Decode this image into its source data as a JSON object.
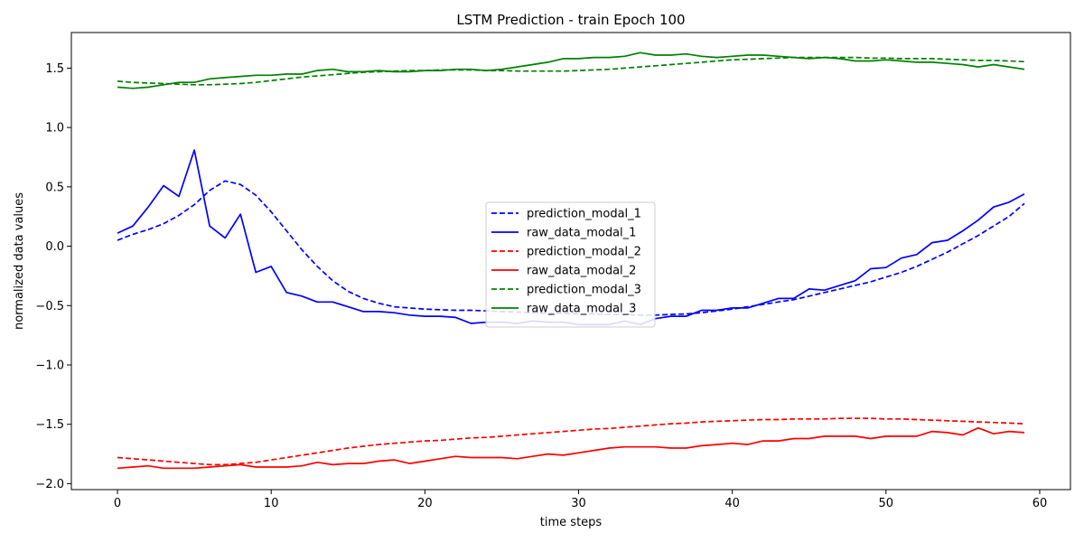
{
  "chart_data": {
    "type": "line",
    "title": "LSTM Prediction - train Epoch 100",
    "xlabel": "time steps",
    "ylabel": "normalized data values",
    "xlim": [
      -3,
      62
    ],
    "ylim": [
      -2.05,
      1.8
    ],
    "xticks": [
      0,
      10,
      20,
      30,
      40,
      50,
      60
    ],
    "yticks": [
      -2.0,
      -1.5,
      -1.0,
      -0.5,
      0.0,
      0.5,
      1.0,
      1.5
    ],
    "ytick_labels": [
      "−2.0",
      "−1.5",
      "−1.0",
      "−0.5",
      "0.0",
      "0.5",
      "1.0",
      "1.5"
    ],
    "grid": false,
    "legend_position": "center",
    "x": [
      0,
      1,
      2,
      3,
      4,
      5,
      6,
      7,
      8,
      9,
      10,
      11,
      12,
      13,
      14,
      15,
      16,
      17,
      18,
      19,
      20,
      21,
      22,
      23,
      24,
      25,
      26,
      27,
      28,
      29,
      30,
      31,
      32,
      33,
      34,
      35,
      36,
      37,
      38,
      39,
      40,
      41,
      42,
      43,
      44,
      45,
      46,
      47,
      48,
      49,
      50,
      51,
      52,
      53,
      54,
      55,
      56,
      57,
      58,
      59
    ],
    "series": [
      {
        "name": "prediction_modal_1",
        "color": "#0000ff",
        "style": "dashed",
        "values": [
          0.05,
          0.1,
          0.14,
          0.19,
          0.26,
          0.35,
          0.47,
          0.55,
          0.52,
          0.43,
          0.29,
          0.13,
          -0.03,
          -0.17,
          -0.29,
          -0.38,
          -0.44,
          -0.48,
          -0.51,
          -0.52,
          -0.53,
          -0.535,
          -0.54,
          -0.54,
          -0.545,
          -0.55,
          -0.555,
          -0.56,
          -0.565,
          -0.565,
          -0.57,
          -0.57,
          -0.575,
          -0.575,
          -0.58,
          -0.58,
          -0.575,
          -0.57,
          -0.56,
          -0.545,
          -0.53,
          -0.51,
          -0.49,
          -0.47,
          -0.45,
          -0.42,
          -0.39,
          -0.36,
          -0.33,
          -0.3,
          -0.26,
          -0.22,
          -0.17,
          -0.11,
          -0.05,
          0.02,
          0.09,
          0.17,
          0.25,
          0.36
        ]
      },
      {
        "name": "raw_data_modal_1",
        "color": "#0000ff",
        "style": "solid",
        "values": [
          0.11,
          0.17,
          0.33,
          0.51,
          0.42,
          0.81,
          0.17,
          0.07,
          0.27,
          -0.22,
          -0.17,
          -0.39,
          -0.42,
          -0.47,
          -0.47,
          -0.51,
          -0.55,
          -0.55,
          -0.56,
          -0.58,
          -0.59,
          -0.59,
          -0.6,
          -0.65,
          -0.64,
          -0.64,
          -0.65,
          -0.63,
          -0.64,
          -0.64,
          -0.66,
          -0.66,
          -0.66,
          -0.63,
          -0.66,
          -0.61,
          -0.59,
          -0.59,
          -0.54,
          -0.54,
          -0.52,
          -0.52,
          -0.48,
          -0.44,
          -0.44,
          -0.36,
          -0.37,
          -0.33,
          -0.29,
          -0.19,
          -0.18,
          -0.1,
          -0.07,
          0.03,
          0.05,
          0.13,
          0.22,
          0.33,
          0.37,
          0.44
        ]
      },
      {
        "name": "prediction_modal_2",
        "color": "#ff0000",
        "style": "dashed",
        "values": [
          -1.78,
          -1.79,
          -1.8,
          -1.81,
          -1.82,
          -1.83,
          -1.84,
          -1.84,
          -1.83,
          -1.82,
          -1.8,
          -1.78,
          -1.76,
          -1.74,
          -1.72,
          -1.7,
          -1.685,
          -1.67,
          -1.66,
          -1.65,
          -1.64,
          -1.635,
          -1.625,
          -1.615,
          -1.61,
          -1.6,
          -1.59,
          -1.58,
          -1.57,
          -1.56,
          -1.55,
          -1.54,
          -1.535,
          -1.525,
          -1.515,
          -1.505,
          -1.495,
          -1.49,
          -1.48,
          -1.475,
          -1.47,
          -1.465,
          -1.46,
          -1.46,
          -1.455,
          -1.455,
          -1.455,
          -1.45,
          -1.45,
          -1.45,
          -1.455,
          -1.455,
          -1.46,
          -1.465,
          -1.47,
          -1.475,
          -1.48,
          -1.485,
          -1.49,
          -1.495
        ]
      },
      {
        "name": "raw_data_modal_2",
        "color": "#ff0000",
        "style": "solid",
        "values": [
          -1.87,
          -1.86,
          -1.85,
          -1.87,
          -1.87,
          -1.87,
          -1.86,
          -1.85,
          -1.84,
          -1.86,
          -1.86,
          -1.86,
          -1.85,
          -1.82,
          -1.84,
          -1.83,
          -1.83,
          -1.81,
          -1.8,
          -1.83,
          -1.81,
          -1.79,
          -1.77,
          -1.78,
          -1.78,
          -1.78,
          -1.79,
          -1.77,
          -1.75,
          -1.76,
          -1.74,
          -1.72,
          -1.7,
          -1.69,
          -1.69,
          -1.69,
          -1.7,
          -1.7,
          -1.68,
          -1.67,
          -1.66,
          -1.67,
          -1.64,
          -1.64,
          -1.62,
          -1.62,
          -1.6,
          -1.6,
          -1.6,
          -1.62,
          -1.6,
          -1.6,
          -1.6,
          -1.56,
          -1.57,
          -1.59,
          -1.53,
          -1.58,
          -1.56,
          -1.57
        ]
      },
      {
        "name": "prediction_modal_3",
        "color": "#008000",
        "style": "dashed",
        "values": [
          1.39,
          1.38,
          1.375,
          1.37,
          1.365,
          1.36,
          1.36,
          1.365,
          1.37,
          1.38,
          1.395,
          1.41,
          1.425,
          1.435,
          1.445,
          1.455,
          1.465,
          1.47,
          1.475,
          1.48,
          1.48,
          1.485,
          1.485,
          1.485,
          1.48,
          1.48,
          1.475,
          1.475,
          1.475,
          1.475,
          1.48,
          1.485,
          1.49,
          1.5,
          1.51,
          1.52,
          1.53,
          1.54,
          1.55,
          1.56,
          1.57,
          1.575,
          1.58,
          1.585,
          1.59,
          1.59,
          1.59,
          1.59,
          1.59,
          1.585,
          1.585,
          1.58,
          1.58,
          1.58,
          1.575,
          1.57,
          1.565,
          1.565,
          1.56,
          1.555
        ]
      },
      {
        "name": "raw_data_modal_3",
        "color": "#008000",
        "style": "solid",
        "values": [
          1.34,
          1.33,
          1.34,
          1.36,
          1.38,
          1.38,
          1.41,
          1.42,
          1.43,
          1.44,
          1.44,
          1.45,
          1.45,
          1.48,
          1.49,
          1.47,
          1.47,
          1.48,
          1.47,
          1.47,
          1.48,
          1.48,
          1.49,
          1.49,
          1.48,
          1.49,
          1.51,
          1.53,
          1.55,
          1.58,
          1.58,
          1.59,
          1.59,
          1.6,
          1.63,
          1.61,
          1.61,
          1.62,
          1.6,
          1.59,
          1.6,
          1.61,
          1.61,
          1.6,
          1.59,
          1.58,
          1.59,
          1.58,
          1.56,
          1.56,
          1.57,
          1.56,
          1.55,
          1.55,
          1.54,
          1.53,
          1.51,
          1.53,
          1.51,
          1.49
        ]
      }
    ]
  }
}
